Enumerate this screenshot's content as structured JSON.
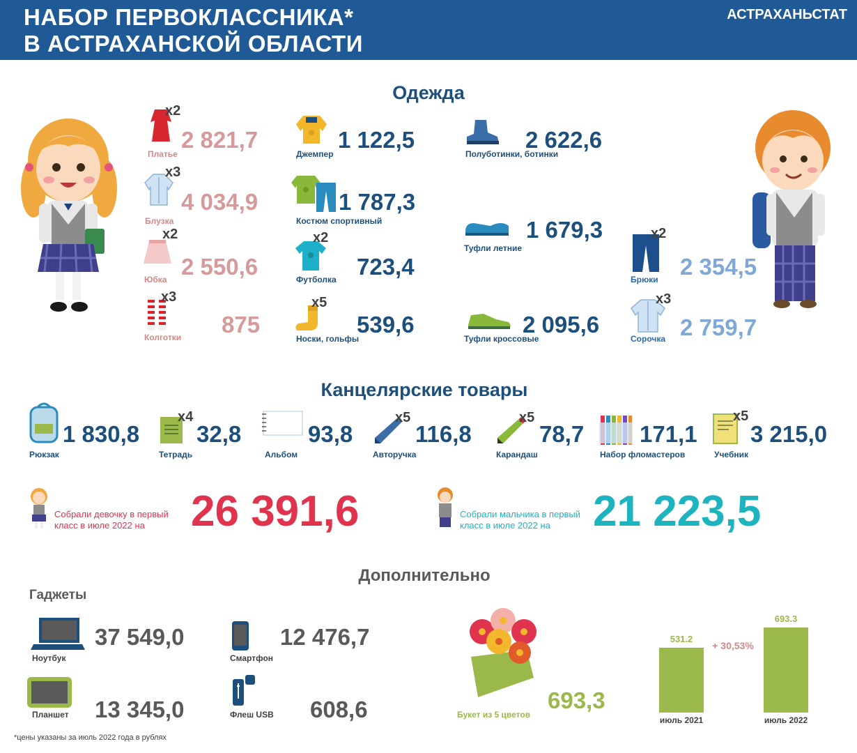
{
  "header": {
    "title_line1": "НАБОР ПЕРВОКЛАССНИКА*",
    "title_line2": "В АСТРАХАНСКОЙ ОБЛАСТИ",
    "org": "АСТРАХАНЬСТАТ"
  },
  "clothes": {
    "heading": "Одежда",
    "girl": [
      {
        "label": "Платье",
        "value": "2 821,7",
        "mult": "x2",
        "icon": "dress-icon"
      },
      {
        "label": "Блузка",
        "value": "4 034,9",
        "mult": "x3",
        "icon": "blouse-icon"
      },
      {
        "label": "Юбка",
        "value": "2 550,6",
        "mult": "x2",
        "icon": "skirt-icon"
      },
      {
        "label": "Колготки",
        "value": "875",
        "mult": "x3",
        "icon": "tights-icon"
      }
    ],
    "common": [
      {
        "label": "Джемпер",
        "value": "1 122,5",
        "mult": "",
        "icon": "sweater-icon"
      },
      {
        "label": "Костюм спортивный",
        "value": "1 787,3",
        "mult": "",
        "icon": "tracksuit-icon"
      },
      {
        "label": "Футболка",
        "value": "723,4",
        "mult": "x2",
        "icon": "tshirt-icon"
      },
      {
        "label": "Носки, гольфы",
        "value": "539,6",
        "mult": "x5",
        "icon": "socks-icon"
      }
    ],
    "shoes": [
      {
        "label": "Полуботинки,  ботинки",
        "value": "2 622,6",
        "icon": "boots-icon"
      },
      {
        "label": "Туфли летние",
        "value": "1 679,3",
        "icon": "sandals-icon"
      },
      {
        "label": "Туфли кроссовые",
        "value": "2 095,6",
        "icon": "sneakers-icon"
      }
    ],
    "boy": [
      {
        "label": "Брюки",
        "value": "2 354,5",
        "mult": "x2",
        "icon": "trousers-icon"
      },
      {
        "label": "Сорочка",
        "value": "2 759,7",
        "mult": "x3",
        "icon": "shirt-icon"
      }
    ]
  },
  "stationery": {
    "heading": "Канцелярские товары",
    "items": [
      {
        "label": "Рюкзак",
        "value": "1 830,8",
        "mult": "",
        "icon": "backpack-icon"
      },
      {
        "label": "Тетрадь",
        "value": "32,8",
        "mult": "x4",
        "icon": "notebook-icon"
      },
      {
        "label": "Альбом",
        "value": "93,8",
        "mult": "",
        "icon": "sketchbook-icon"
      },
      {
        "label": "Авторучка",
        "value": "116,8",
        "mult": "x5",
        "icon": "pen-icon"
      },
      {
        "label": "Карандаш",
        "value": "78,7",
        "mult": "x5",
        "icon": "pencil-icon"
      },
      {
        "label": "Набор фломастеров",
        "value": "171,1",
        "mult": "",
        "icon": "markers-icon"
      },
      {
        "label": "Учебник",
        "value": "3 215,0",
        "mult": "x5",
        "icon": "textbook-icon"
      }
    ]
  },
  "totals": {
    "girl_text": "Собрали девочку в первый класс в июле 2022 на",
    "girl_value": "26 391,6",
    "boy_text": "Собрали мальчика  в первый класс в июле 2022 на",
    "boy_value": "21 223,5"
  },
  "extra": {
    "heading": "Дополнительно",
    "gadgets_heading": "Гаджеты",
    "gadgets": [
      {
        "label": "Ноутбук",
        "value": "37 549,0",
        "icon": "laptop-icon"
      },
      {
        "label": "Смартфон",
        "value": "12 476,7",
        "icon": "smartphone-icon"
      },
      {
        "label": "Планшет",
        "value": "13 345,0",
        "icon": "tablet-icon"
      },
      {
        "label": "Флеш USB",
        "value": "608,6",
        "icon": "usb-icon"
      }
    ],
    "bouquet_label": "Букет из 5 цветов",
    "bouquet_value": "693,3"
  },
  "chart_data": {
    "type": "bar",
    "categories": [
      "июль 2021",
      "июль 2022"
    ],
    "values": [
      531.2,
      693.3
    ],
    "value_labels": [
      "531.2",
      "693.3"
    ],
    "annotation": "+ 30,53%",
    "colors": [
      "#9bb84a"
    ]
  },
  "footnote": "*цены указаны за июль 2022 года в рублях",
  "colors": {
    "header": "#1f5a96",
    "navy": "#1d4f7c",
    "pink": "#d69a9a",
    "light_blue": "#7fa8d6",
    "red": "#e0344e",
    "teal": "#1db3bf",
    "green": "#9bb84a"
  }
}
